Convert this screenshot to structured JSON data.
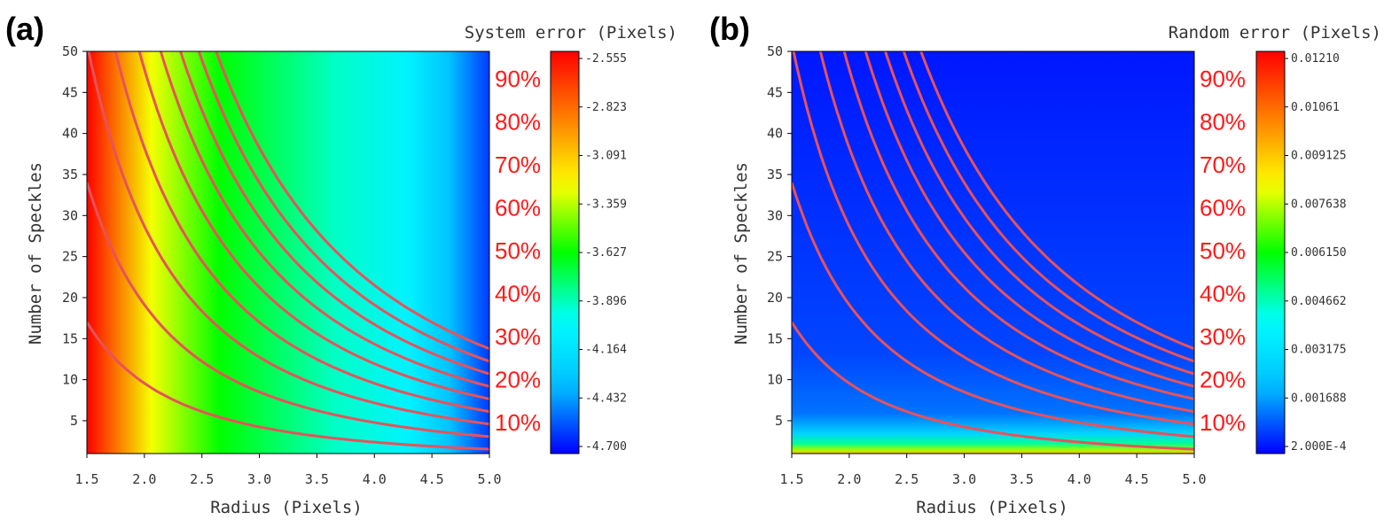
{
  "chart_data": [
    {
      "type": "heatmap",
      "panel_label": "(a)",
      "colorbar_title": "System error (Pixels)",
      "xlabel": "Radius (Pixels)",
      "ylabel": "Number of Speckles",
      "xlim": [
        1.5,
        5.0
      ],
      "ylim": [
        1,
        50
      ],
      "xticks": [
        "1.5",
        "2.0",
        "2.5",
        "3.0",
        "3.5",
        "4.0",
        "4.5",
        "5.0"
      ],
      "yticks": [
        "5",
        "10",
        "15",
        "20",
        "25",
        "30",
        "35",
        "40",
        "45",
        "50"
      ],
      "colorbar_ticks": [
        "-2.555",
        "-2.823",
        "-3.091",
        "-3.359",
        "-3.627",
        "-3.896",
        "-4.164",
        "-4.432",
        "-4.700"
      ],
      "colorbar_range": [
        -4.7,
        -2.555
      ],
      "contour_labels": [
        "90%",
        "80%",
        "70%",
        "60%",
        "50%",
        "40%",
        "30%",
        "20%",
        "10%"
      ],
      "contour_levels": [
        10,
        20,
        30,
        40,
        50,
        60,
        70,
        80,
        90
      ],
      "colormap": [
        "#0000ff",
        "#00bfff",
        "#00ffff",
        "#00ff00",
        "#ffff00",
        "#ff8000",
        "#ff0000"
      ],
      "contour_color": "#e8525a"
    },
    {
      "type": "heatmap",
      "panel_label": "(b)",
      "colorbar_title": "Random error (Pixels)",
      "xlabel": "Radius (Pixels)",
      "ylabel": "Number of Speckles",
      "xlim": [
        1.5,
        5.0
      ],
      "ylim": [
        1,
        50
      ],
      "xticks": [
        "1.5",
        "2.0",
        "2.5",
        "3.0",
        "3.5",
        "4.0",
        "4.5",
        "5.0"
      ],
      "yticks": [
        "5",
        "10",
        "15",
        "20",
        "25",
        "30",
        "35",
        "40",
        "45",
        "50"
      ],
      "colorbar_ticks": [
        "0.01210",
        "0.01061",
        "0.009125",
        "0.007638",
        "0.006150",
        "0.004662",
        "0.003175",
        "0.001688",
        "2.000E-4"
      ],
      "colorbar_range": [
        0.0002,
        0.0121
      ],
      "contour_labels": [
        "90%",
        "80%",
        "70%",
        "60%",
        "50%",
        "40%",
        "30%",
        "20%",
        "10%"
      ],
      "contour_levels": [
        10,
        20,
        30,
        40,
        50,
        60,
        70,
        80,
        90
      ],
      "colormap": [
        "#0000ff",
        "#00bfff",
        "#00ffff",
        "#00ff00",
        "#ffff00",
        "#ff8000",
        "#ff0000"
      ],
      "contour_color": "#e8525a"
    }
  ]
}
